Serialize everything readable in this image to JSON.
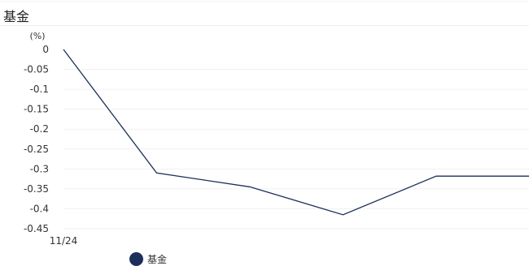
{
  "page_title": "基金",
  "chart_data": {
    "type": "line",
    "title": "",
    "xlabel": "",
    "ylabel": "(%)",
    "x": [
      "11/24",
      "",
      "",
      "",
      "",
      ""
    ],
    "x_tick_labels": [
      "11/24"
    ],
    "ylim": [
      -0.45,
      0
    ],
    "y_ticks": [
      0,
      -0.05,
      -0.1,
      -0.15,
      -0.2,
      -0.25,
      -0.3,
      -0.35,
      -0.4,
      -0.45
    ],
    "grid": true,
    "legend_position": "bottom-left",
    "series": [
      {
        "name": "基金",
        "color": "#1b2f5a",
        "values": [
          0,
          -0.31,
          -0.345,
          -0.415,
          -0.318,
          -0.318
        ]
      }
    ]
  }
}
